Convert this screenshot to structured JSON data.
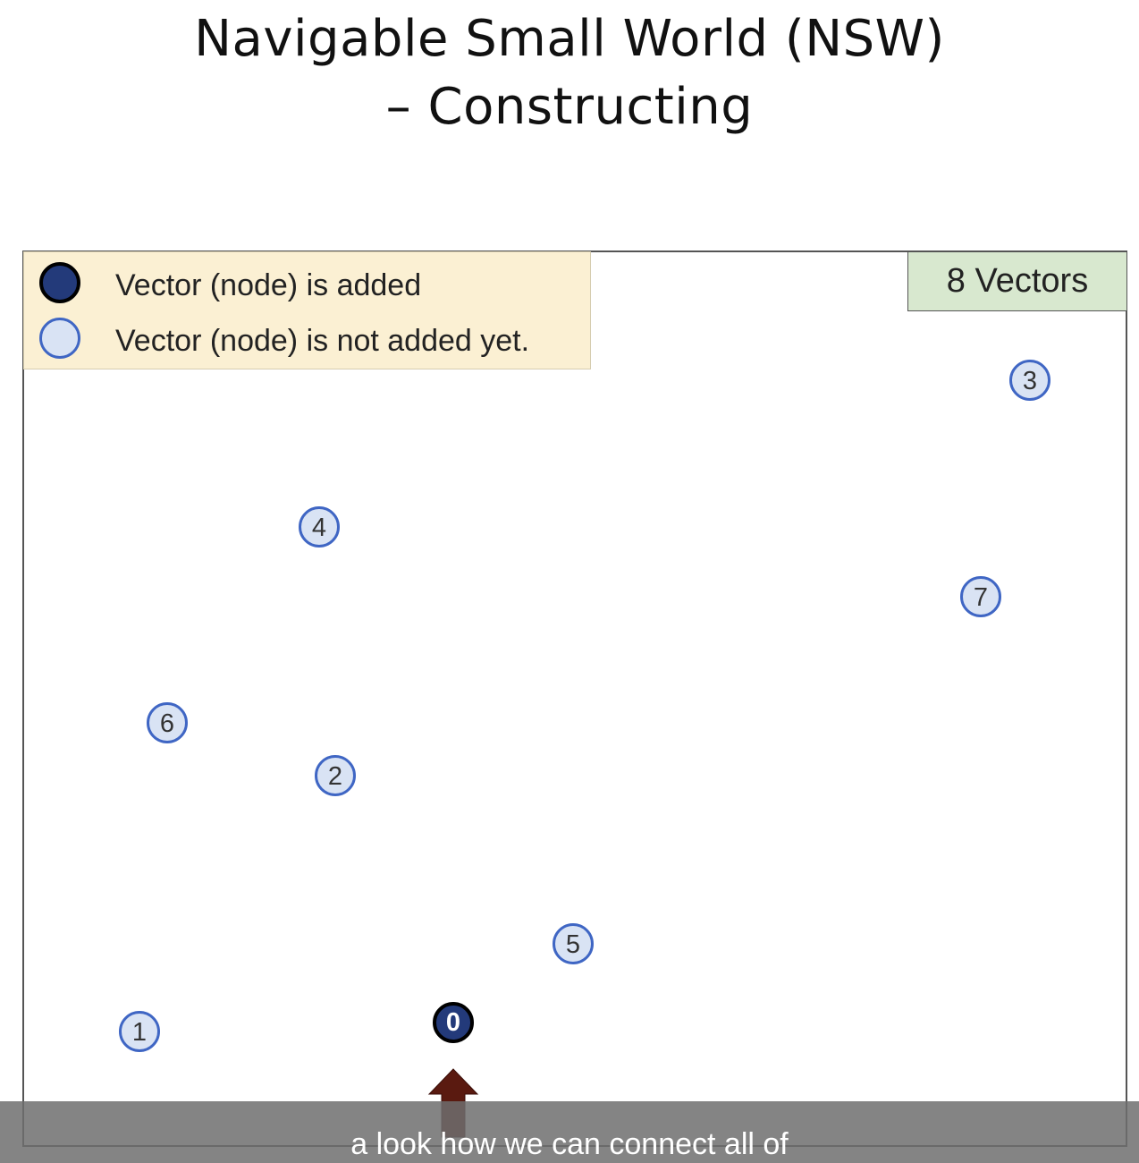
{
  "title": {
    "line1": "Navigable Small World (NSW)",
    "line2": "– Constructing"
  },
  "legend": {
    "added_label": "Vector (node) is added",
    "pending_label": "Vector (node) is not added yet."
  },
  "counter_label": "8 Vectors",
  "nodes": [
    {
      "id": "0",
      "state": "added"
    },
    {
      "id": "1",
      "state": "pending"
    },
    {
      "id": "2",
      "state": "pending"
    },
    {
      "id": "3",
      "state": "pending"
    },
    {
      "id": "4",
      "state": "pending"
    },
    {
      "id": "5",
      "state": "pending"
    },
    {
      "id": "6",
      "state": "pending"
    },
    {
      "id": "7",
      "state": "pending"
    }
  ],
  "arrow_target": "0",
  "caption": "a look how we can connect all of",
  "colors": {
    "added_fill": "#233a7a",
    "added_stroke": "#000000",
    "pending_fill": "#d9e3f4",
    "pending_stroke": "#3f66c4",
    "legend_bg": "#fbf0d3",
    "counter_bg": "#d8e8cf",
    "arrow": "#5a1a10"
  }
}
